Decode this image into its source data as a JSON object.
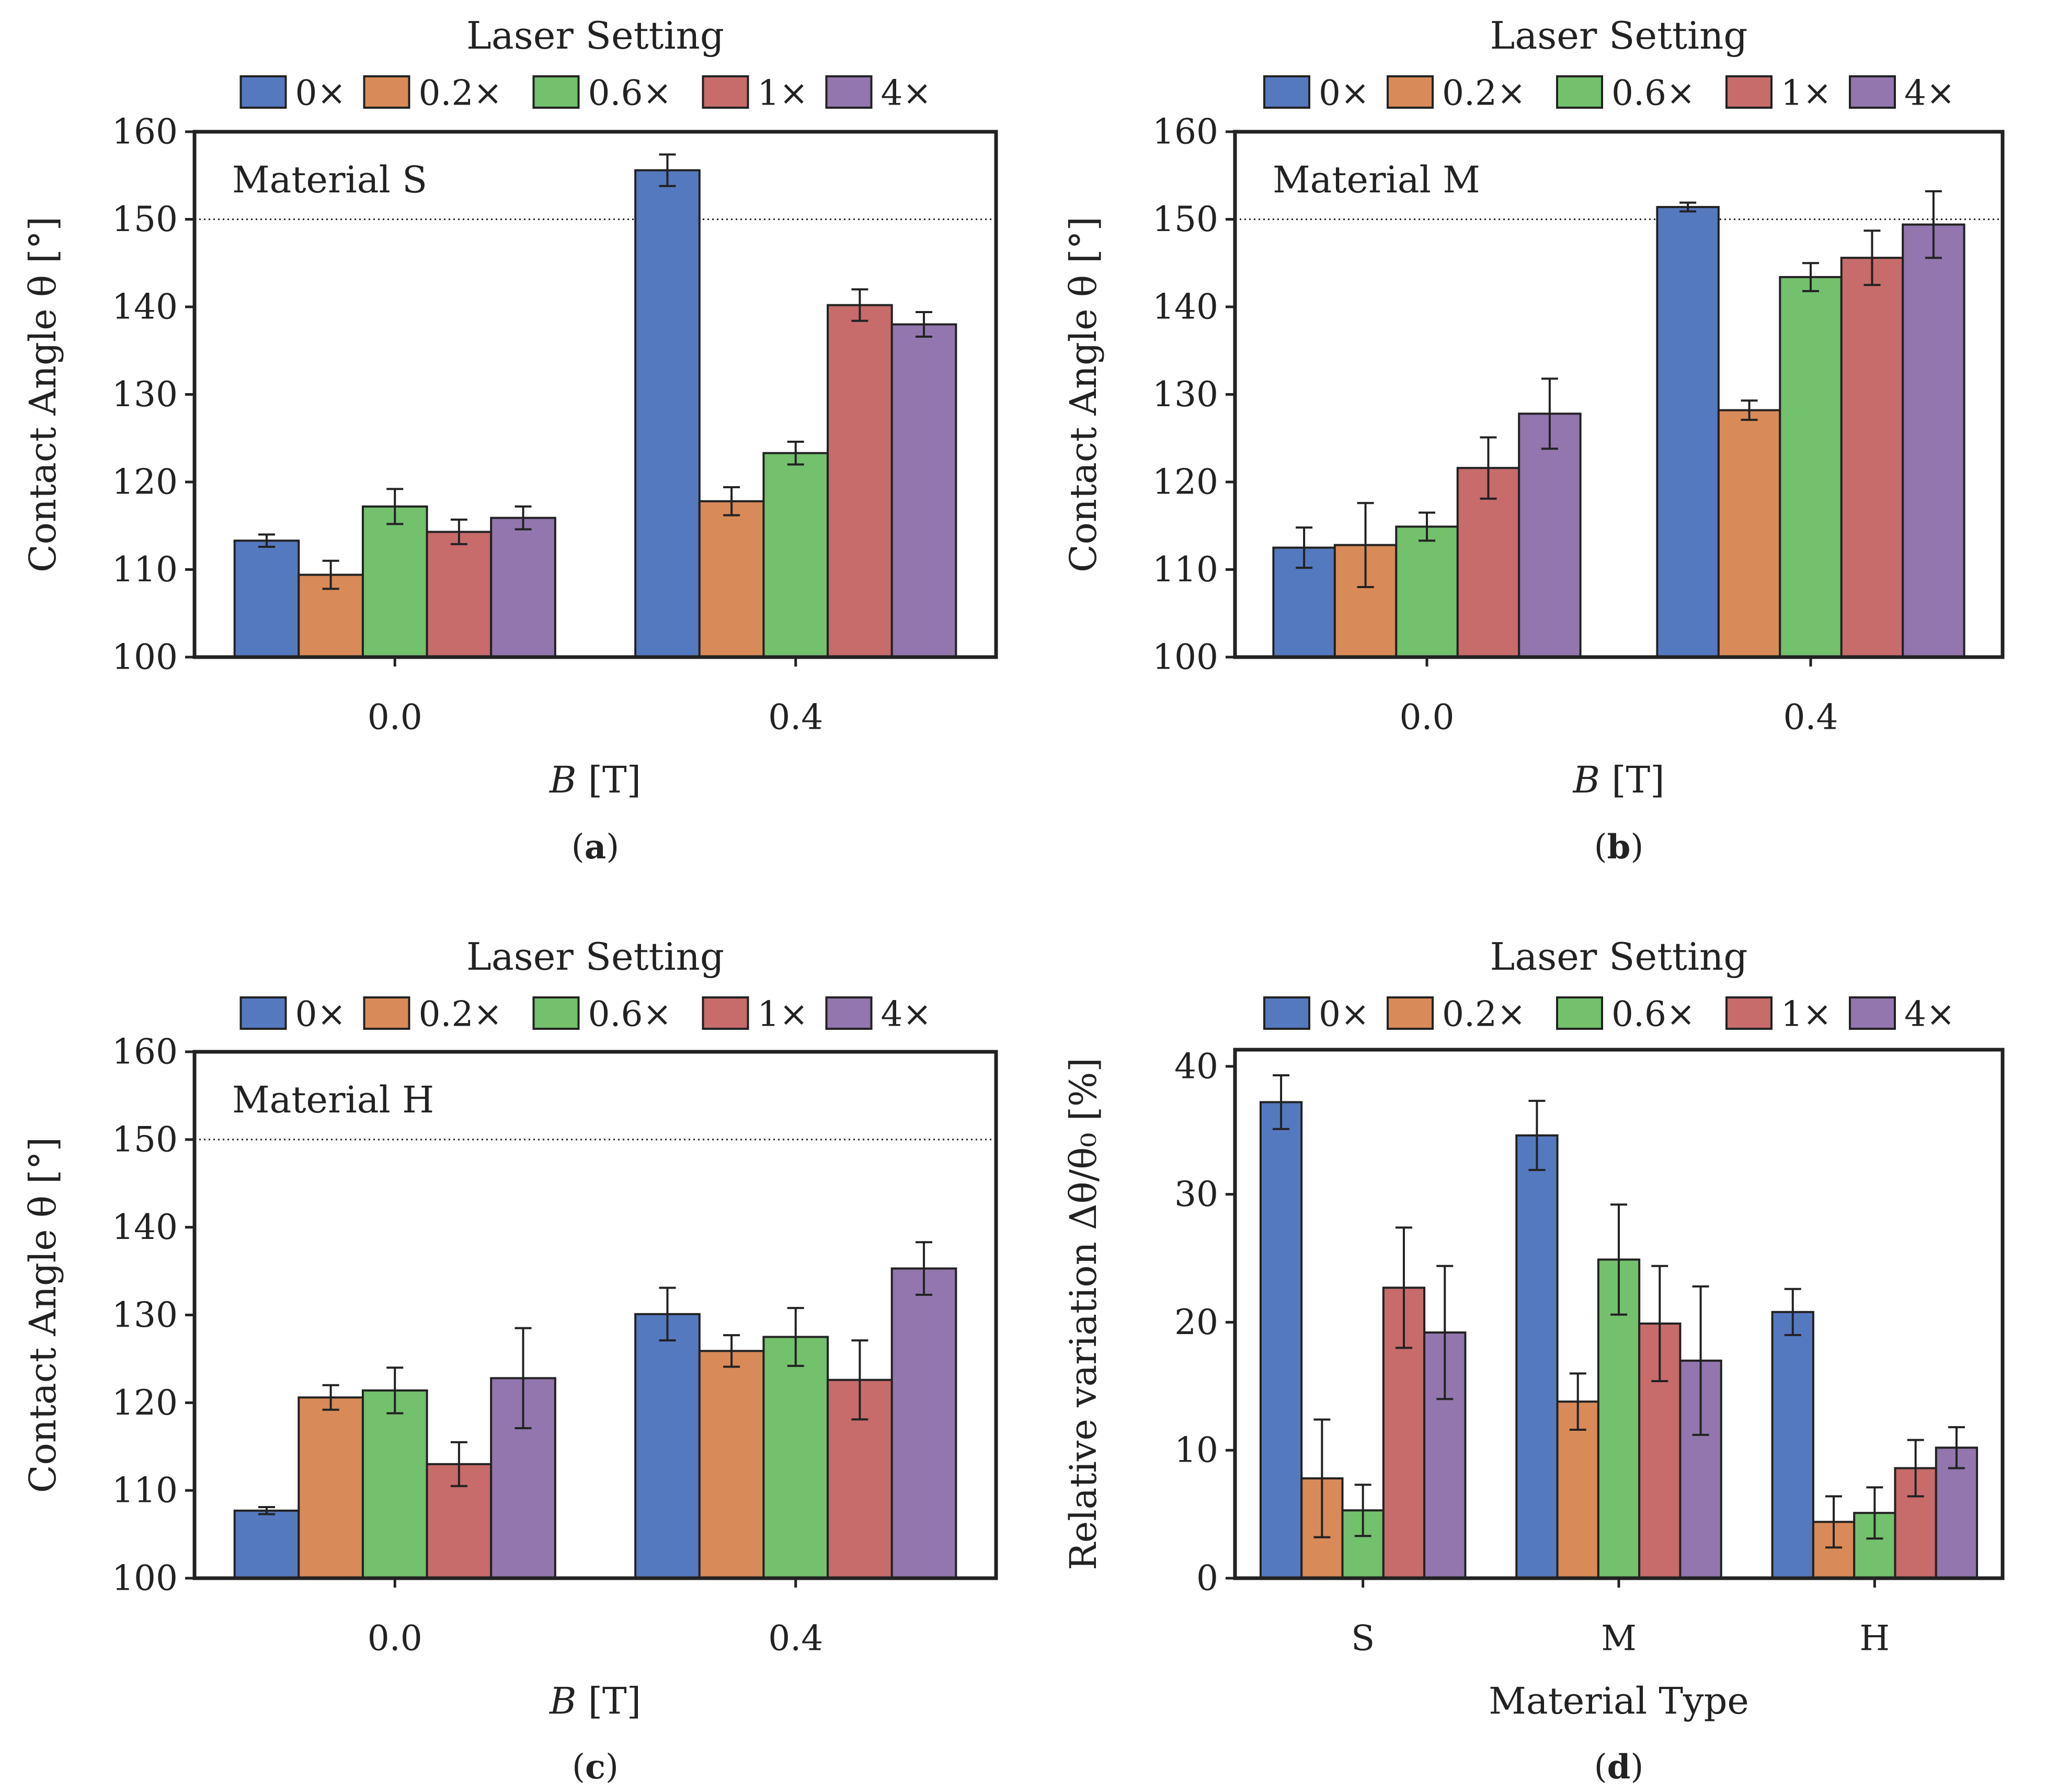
{
  "chart_data": [
    {
      "id": "a",
      "type": "bar",
      "caption_letter": "a",
      "annotation": "Material S",
      "legend_title": "Laser Setting",
      "xlabel_var": "B",
      "xlabel_unit": " [T]",
      "ylabel": "Contact Angle θ [°]",
      "ylim": [
        100,
        160
      ],
      "yticks": [
        100,
        110,
        120,
        130,
        140,
        150,
        160
      ],
      "reference_line": 150,
      "categories": [
        "0.0",
        "0.4"
      ],
      "series": [
        {
          "name": "0×",
          "color": "#5579bf",
          "values": [
            113.3,
            155.6
          ],
          "errors": [
            0.7,
            1.8
          ]
        },
        {
          "name": "0.2×",
          "color": "#d88a58",
          "values": [
            109.4,
            117.8
          ],
          "errors": [
            1.6,
            1.6
          ]
        },
        {
          "name": "0.6×",
          "color": "#73c06d",
          "values": [
            117.2,
            123.3
          ],
          "errors": [
            2.0,
            1.3
          ]
        },
        {
          "name": "1×",
          "color": "#c76b6b",
          "values": [
            114.3,
            140.2
          ],
          "errors": [
            1.4,
            1.8
          ]
        },
        {
          "name": "4×",
          "color": "#9276ad",
          "values": [
            115.9,
            138.0
          ],
          "errors": [
            1.3,
            1.4
          ]
        }
      ]
    },
    {
      "id": "b",
      "type": "bar",
      "caption_letter": "b",
      "annotation": "Material M",
      "legend_title": "Laser Setting",
      "xlabel_var": "B",
      "xlabel_unit": " [T]",
      "ylabel": "Contact Angle θ [°]",
      "ylim": [
        100,
        160
      ],
      "yticks": [
        100,
        110,
        120,
        130,
        140,
        150,
        160
      ],
      "reference_line": 150,
      "categories": [
        "0.0",
        "0.4"
      ],
      "series": [
        {
          "name": "0×",
          "color": "#5579bf",
          "values": [
            112.5,
            151.4
          ],
          "errors": [
            2.3,
            0.5
          ]
        },
        {
          "name": "0.2×",
          "color": "#d88a58",
          "values": [
            112.8,
            128.2
          ],
          "errors": [
            4.8,
            1.1
          ]
        },
        {
          "name": "0.6×",
          "color": "#73c06d",
          "values": [
            114.9,
            143.4
          ],
          "errors": [
            1.6,
            1.6
          ]
        },
        {
          "name": "1×",
          "color": "#c76b6b",
          "values": [
            121.6,
            145.6
          ],
          "errors": [
            3.5,
            3.1
          ]
        },
        {
          "name": "4×",
          "color": "#9276ad",
          "values": [
            127.8,
            149.4
          ],
          "errors": [
            4.0,
            3.8
          ]
        }
      ]
    },
    {
      "id": "c",
      "type": "bar",
      "caption_letter": "c",
      "annotation": "Material H",
      "legend_title": "Laser Setting",
      "xlabel_var": "B",
      "xlabel_unit": " [T]",
      "ylabel": "Contact Angle θ [°]",
      "ylim": [
        100,
        160
      ],
      "yticks": [
        100,
        110,
        120,
        130,
        140,
        150,
        160
      ],
      "reference_line": 150,
      "categories": [
        "0.0",
        "0.4"
      ],
      "series": [
        {
          "name": "0×",
          "color": "#5579bf",
          "values": [
            107.7,
            130.1
          ],
          "errors": [
            0.4,
            3.0
          ]
        },
        {
          "name": "0.2×",
          "color": "#d88a58",
          "values": [
            120.6,
            125.9
          ],
          "errors": [
            1.4,
            1.8
          ]
        },
        {
          "name": "0.6×",
          "color": "#73c06d",
          "values": [
            121.4,
            127.5
          ],
          "errors": [
            2.6,
            3.3
          ]
        },
        {
          "name": "1×",
          "color": "#c76b6b",
          "values": [
            113.0,
            122.6
          ],
          "errors": [
            2.5,
            4.5
          ]
        },
        {
          "name": "4×",
          "color": "#9276ad",
          "values": [
            122.8,
            135.3
          ],
          "errors": [
            5.7,
            3.0
          ]
        }
      ]
    },
    {
      "id": "d",
      "type": "bar",
      "caption_letter": "d",
      "annotation": "",
      "legend_title": "Laser Setting",
      "xlabel_var": "",
      "xlabel_unit": "Material Type",
      "ylabel": "Relative variation Δθ/θ₀ [%]",
      "ylim": [
        0,
        41.3
      ],
      "yticks": [
        0,
        10,
        20,
        30,
        40
      ],
      "reference_line": null,
      "categories": [
        "S",
        "M",
        "H"
      ],
      "series": [
        {
          "name": "0×",
          "color": "#5579bf",
          "values": [
            37.2,
            34.6,
            20.8
          ],
          "errors": [
            2.1,
            2.7,
            1.8
          ]
        },
        {
          "name": "0.2×",
          "color": "#d88a58",
          "values": [
            7.8,
            13.8,
            4.4
          ],
          "errors": [
            4.6,
            2.2,
            2.0
          ]
        },
        {
          "name": "0.6×",
          "color": "#73c06d",
          "values": [
            5.3,
            24.9,
            5.1
          ],
          "errors": [
            2.0,
            4.3,
            2.0
          ]
        },
        {
          "name": "1×",
          "color": "#c76b6b",
          "values": [
            22.7,
            19.9,
            8.6
          ],
          "errors": [
            4.7,
            4.5,
            2.2
          ]
        },
        {
          "name": "4×",
          "color": "#9276ad",
          "values": [
            19.2,
            17.0,
            10.2
          ],
          "errors": [
            5.2,
            5.8,
            1.6
          ]
        }
      ]
    }
  ]
}
